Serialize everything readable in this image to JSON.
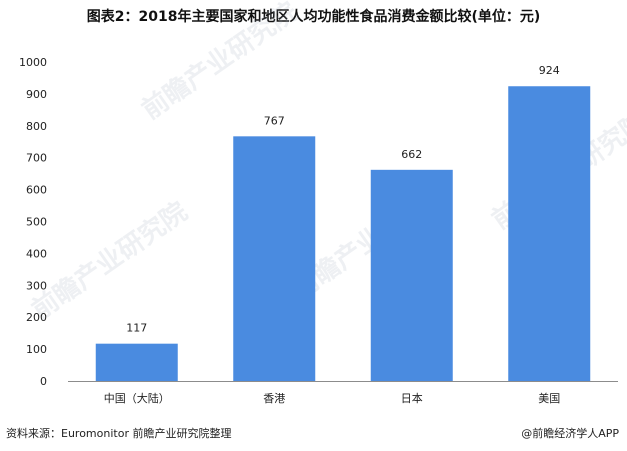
{
  "header": {
    "title": "图表2：2018年主要国家和地区人均功能性食品消费金额比较(单位：元)"
  },
  "footer": {
    "source": "资料来源：Euromonitor 前瞻产业研究院整理",
    "credit": "@前瞻经济学人APP"
  },
  "watermark": {
    "text": "前瞻产业研究院"
  },
  "colors": {
    "bar": "#4a8be0",
    "axis": "#8c8c8c"
  },
  "chart_data": {
    "type": "bar",
    "title": "图表2：2018年主要国家和地区人均功能性食品消费金额比较(单位：元)",
    "categories": [
      "中国（大陆）",
      "香港",
      "日本",
      "美国"
    ],
    "values": [
      117,
      767,
      662,
      924
    ],
    "data_labels": [
      "117",
      "767",
      "662",
      "924"
    ],
    "yticks": [
      0,
      100,
      200,
      300,
      400,
      500,
      600,
      700,
      800,
      900,
      1000
    ],
    "ylim": [
      0,
      1000
    ],
    "grid": false,
    "legend": "none"
  }
}
